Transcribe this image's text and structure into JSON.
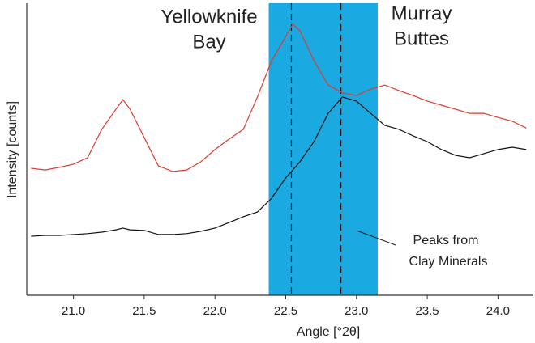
{
  "chart_data": {
    "type": "line",
    "xlabel": "Angle [°2θ]",
    "ylabel": "Intensity [counts]",
    "x": [
      20.7,
      20.8,
      20.9,
      21.0,
      21.1,
      21.2,
      21.3,
      21.35,
      21.4,
      21.5,
      21.6,
      21.7,
      21.8,
      21.9,
      22.0,
      22.1,
      22.2,
      22.3,
      22.4,
      22.5,
      22.55,
      22.6,
      22.7,
      22.8,
      22.9,
      23.0,
      23.1,
      23.2,
      23.3,
      23.4,
      23.5,
      23.6,
      23.7,
      23.8,
      23.9,
      24.0,
      24.1,
      24.2
    ],
    "series": [
      {
        "color": "#e03a2f",
        "values": [
          43.5,
          42.9,
          43.8,
          44.9,
          47.1,
          56.8,
          63.7,
          67.0,
          63.7,
          54.0,
          44.3,
          42.4,
          42.9,
          45.7,
          49.9,
          53.5,
          56.8,
          67.9,
          80.3,
          88.6,
          92.8,
          90.6,
          80.3,
          72.0,
          69.3,
          68.4,
          70.6,
          72.0,
          70.1,
          68.4,
          66.5,
          65.1,
          63.7,
          62.3,
          62.3,
          60.9,
          59.6,
          57.3
        ]
      },
      {
        "color": "#111111",
        "values": [
          20.2,
          20.5,
          20.5,
          20.8,
          21.1,
          21.6,
          22.4,
          23.0,
          22.4,
          22.2,
          20.8,
          20.8,
          21.1,
          21.9,
          23.0,
          24.9,
          26.9,
          28.5,
          33.2,
          40.2,
          42.9,
          45.7,
          52.6,
          62.3,
          67.9,
          66.5,
          62.3,
          58.2,
          56.8,
          54.6,
          52.6,
          49.9,
          47.9,
          47.1,
          48.5,
          49.9,
          50.7,
          49.9
        ]
      }
    ],
    "xlim": [
      20.67,
      24.25
    ],
    "ylim": [
      0,
      100
    ],
    "xticks": [
      {
        "value": 21.0,
        "label": "21.0"
      },
      21.5,
      {
        "value": 22.0,
        "label": "22.0"
      },
      22.5,
      {
        "value": 23.0,
        "label": "23.0"
      },
      23.5,
      {
        "value": 24.0,
        "label": "24.0"
      }
    ],
    "shaded_region": [
      22.38,
      23.15
    ],
    "shaded_color": "#1ba9e1",
    "dashed_lines": [
      22.54,
      22.89
    ],
    "annotations": [
      {
        "lines": [
          "Yellowknife",
          "Bay"
        ]
      },
      {
        "lines": [
          "Murray",
          "Buttes"
        ]
      },
      {
        "lines": [
          "Peaks from",
          "Clay Minerals"
        ]
      }
    ]
  }
}
